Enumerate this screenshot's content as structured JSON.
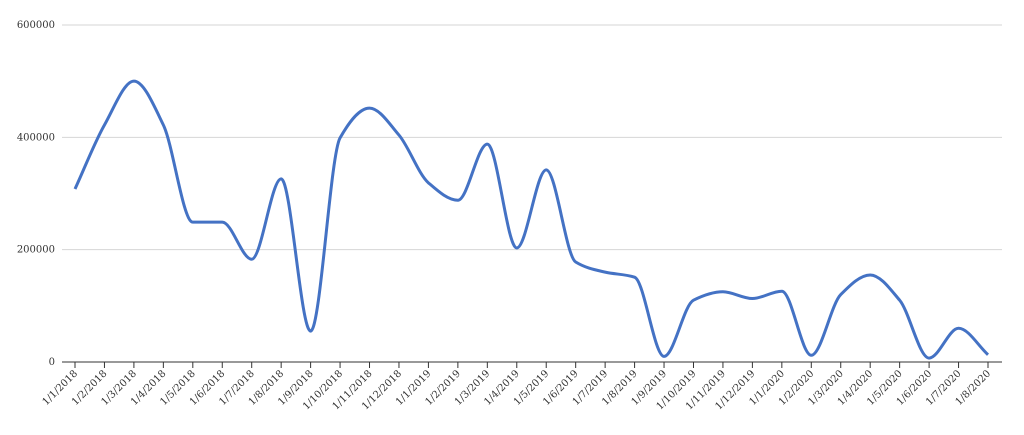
{
  "chart_data": {
    "type": "line",
    "categories": [
      "1/1/2018",
      "1/2/2018",
      "1/3/2018",
      "1/4/2018",
      "1/5/2018",
      "1/6/2018",
      "1/7/2018",
      "1/8/2018",
      "1/9/2018",
      "1/10/2018",
      "1/11/2018",
      "1/12/2018",
      "1/1/2019",
      "1/2/2019",
      "1/3/2019",
      "1/4/2019",
      "1/5/2019",
      "1/6/2019",
      "1/7/2019",
      "1/8/2019",
      "1/9/2019",
      "1/10/2019",
      "1/11/2019",
      "1/12/2019",
      "1/1/2020",
      "1/2/2020",
      "1/3/2020",
      "1/4/2020",
      "1/5/2020",
      "1/6/2020",
      "1/7/2020",
      "1/8/2020"
    ],
    "series": [
      {
        "color": "#4472c4",
        "values": [
          308000,
          422000,
          500000,
          422000,
          249000,
          249000,
          183000,
          326000,
          55000,
          399000,
          452000,
          404000,
          319000,
          288000,
          388000,
          203000,
          342000,
          178000,
          160000,
          151000,
          10000,
          110000,
          125000,
          113000,
          126000,
          12000,
          120000,
          155000,
          110000,
          7000,
          60000,
          13000
        ]
      }
    ],
    "ylim": [
      0,
      600000
    ],
    "yticks": [
      0,
      200000,
      400000,
      600000
    ],
    "grid": true
  }
}
